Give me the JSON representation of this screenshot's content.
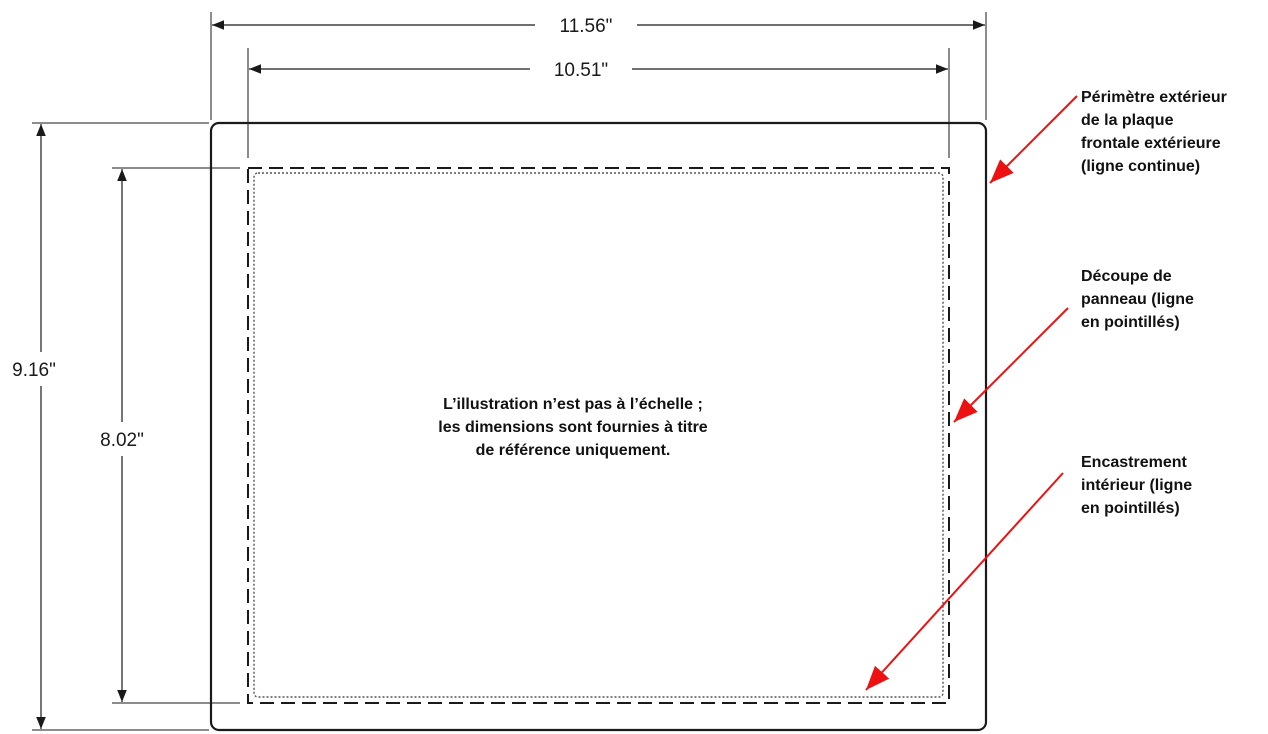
{
  "dimensions": {
    "outer_width": "11.56\"",
    "cutout_width": "10.51\"",
    "outer_height": "9.16\"",
    "cutout_height": "8.02\""
  },
  "center_note": [
    "L’illustration n’est pas à l’échelle ;",
    "les dimensions sont fournies à titre",
    "de référence uniquement."
  ],
  "callouts": {
    "faceplate": [
      "Périmètre extérieur",
      "de la plaque",
      "frontale extérieure",
      "(ligne continue)"
    ],
    "cutout": [
      "Découpe de",
      "panneau (ligne",
      "en pointillés)"
    ],
    "recess": [
      "Encastrement",
      "intérieur (ligne",
      "en pointillés)"
    ]
  },
  "colors": {
    "line": "#1a1a1a",
    "arrow": "#ee1111"
  }
}
